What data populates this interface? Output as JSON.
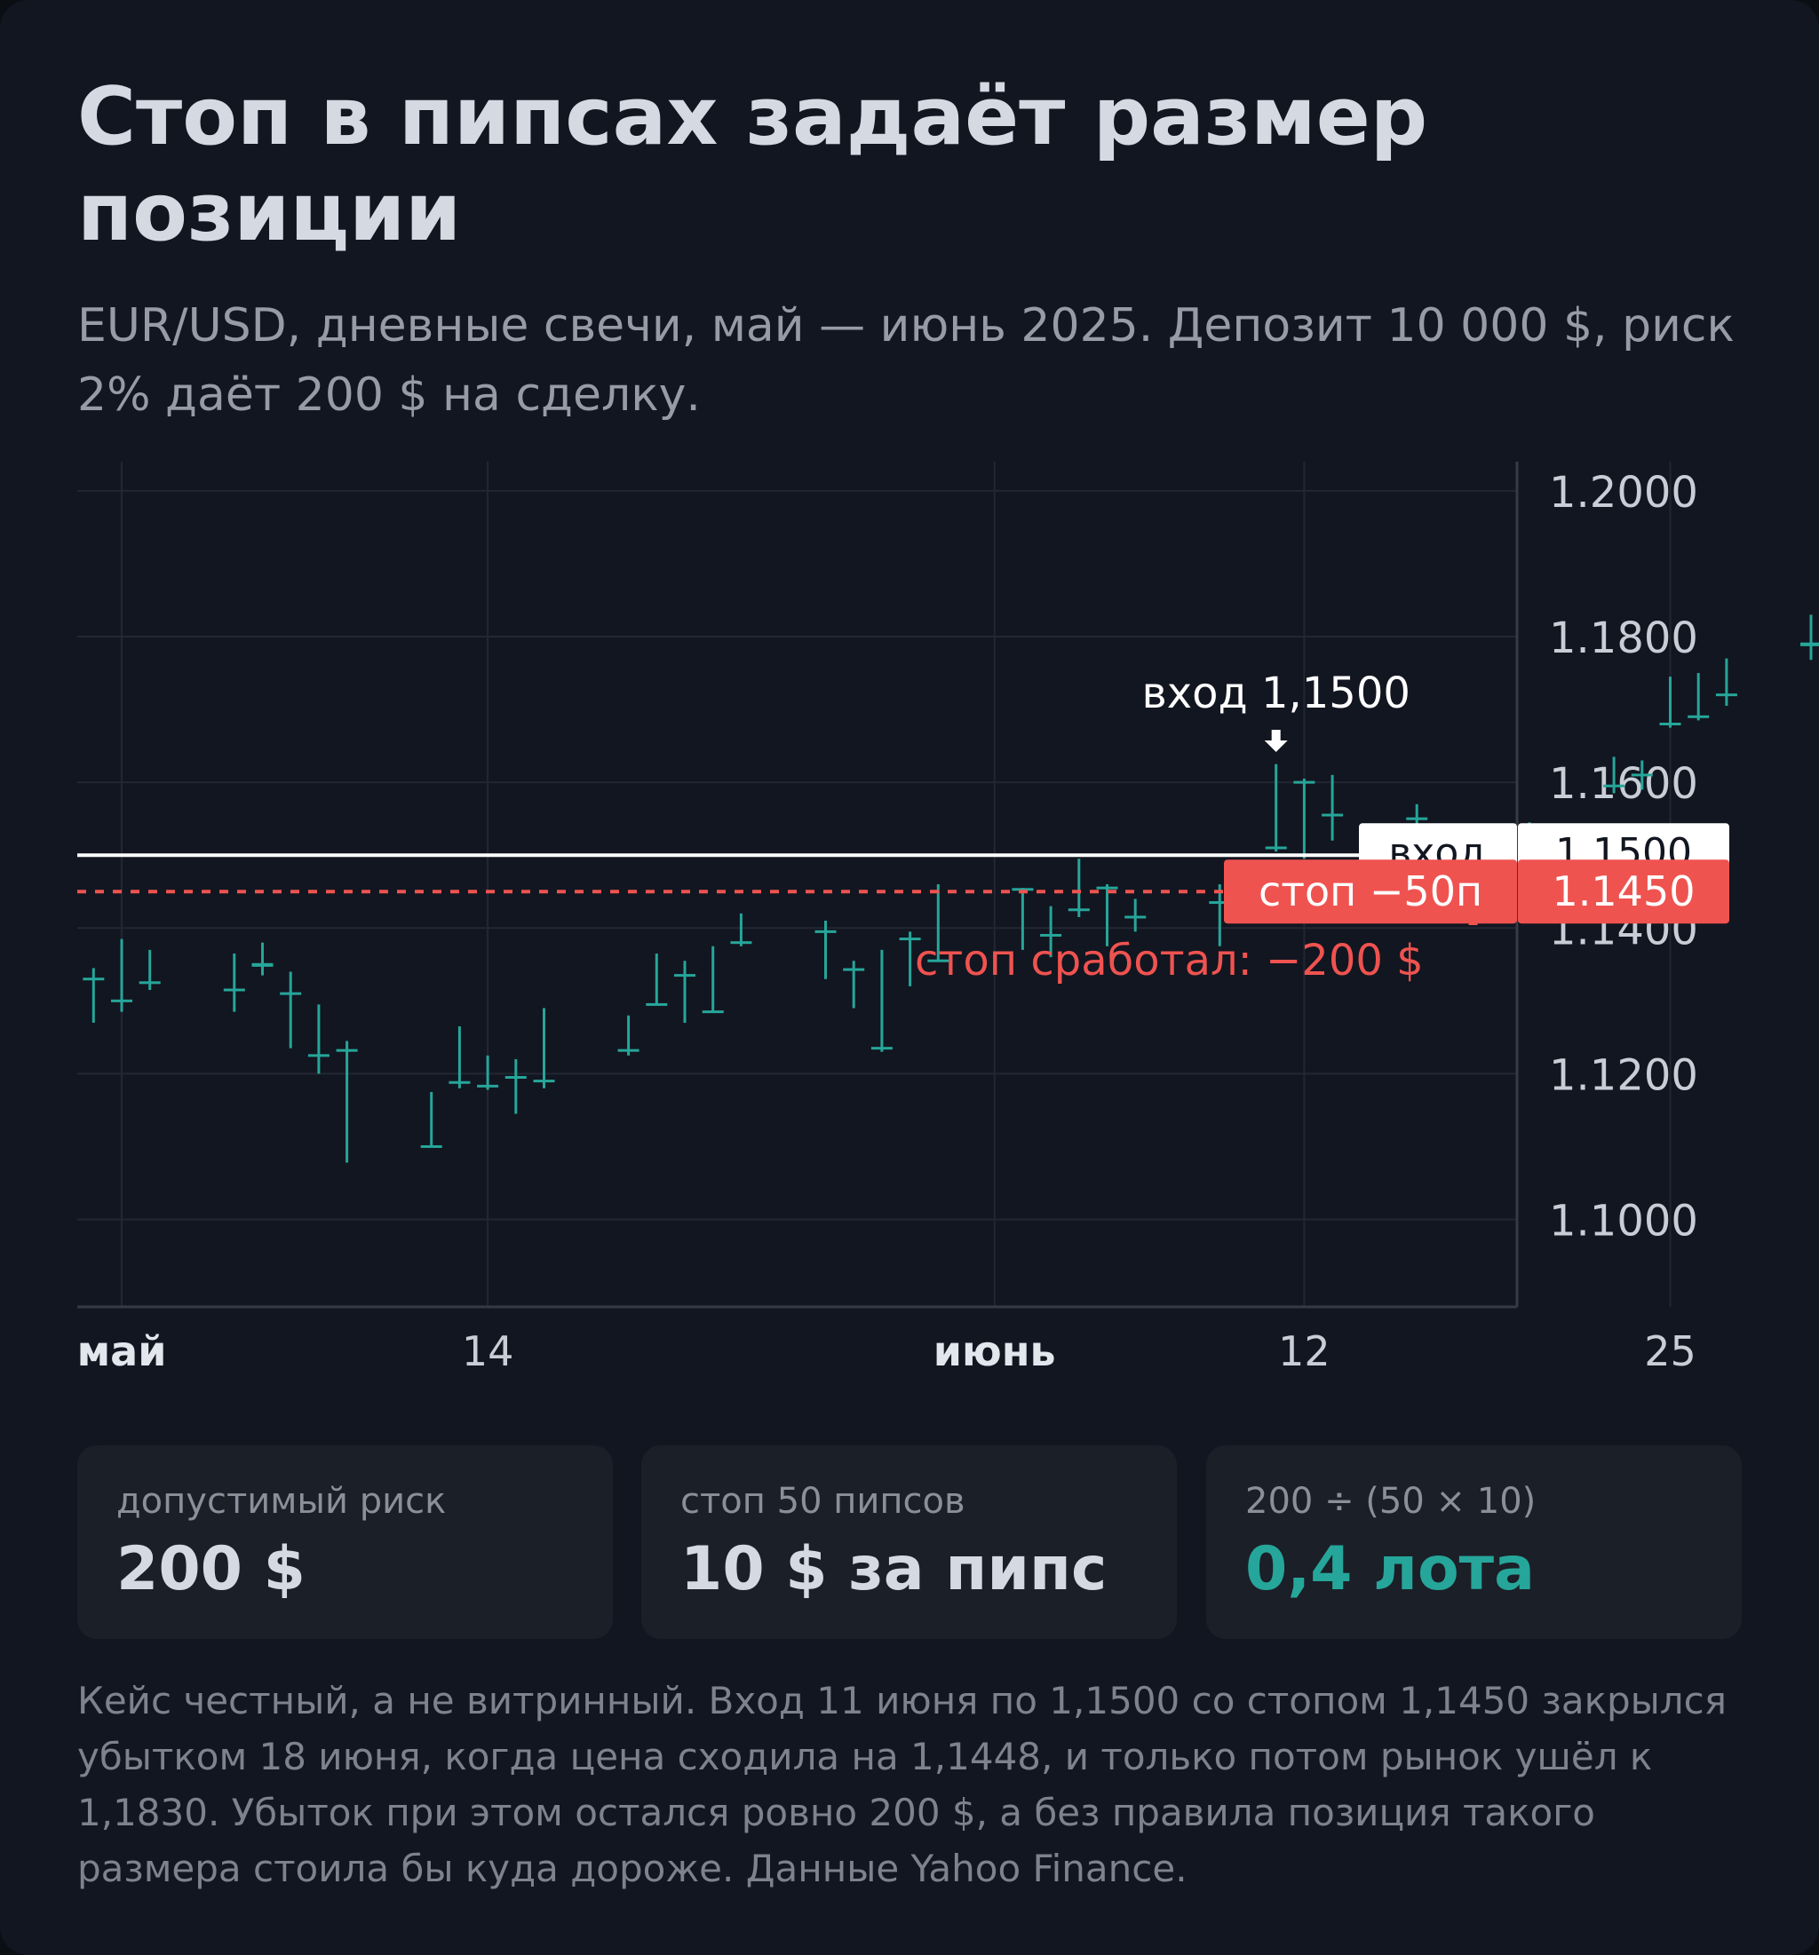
{
  "title": "Стоп в пипсах задаёт размер позиции",
  "subtitle": "EUR/USD, дневные свечи, май — июнь 2025. Депозит 10 000 $, риск 2% даёт 200 $ на сделку.",
  "chart_data": {
    "type": "candlestick",
    "series_name": "EUR/USD",
    "ylim": [
      1.088,
      1.2023
    ],
    "y_ticks": [
      "1.2000",
      "1.1800",
      "1.1600",
      "1.1400",
      "1.1200",
      "1.1000"
    ],
    "y_tick_values": [
      1.2,
      1.18,
      1.16,
      1.14,
      1.12,
      1.1
    ],
    "x_ticks": [
      {
        "label": "май",
        "bold": true,
        "at": "2025-05-01"
      },
      {
        "label": "14",
        "bold": false,
        "at": "2025-05-14"
      },
      {
        "label": "июнь",
        "bold": true,
        "at": "2025-06-01"
      },
      {
        "label": "12",
        "bold": false,
        "at": "2025-06-12"
      },
      {
        "label": "25",
        "bold": false,
        "at": "2025-06-25"
      }
    ],
    "candles": [
      {
        "date": "2025-04-30",
        "open": 1.133,
        "high": 1.1345,
        "low": 1.127,
        "close": 1.1328
      },
      {
        "date": "2025-05-01",
        "open": 1.13,
        "high": 1.1385,
        "low": 1.1285,
        "close": 1.13
      },
      {
        "date": "2025-05-02",
        "open": 1.1325,
        "high": 1.137,
        "low": 1.1315,
        "close": 1.1325
      },
      {
        "date": "2025-05-05",
        "open": 1.1315,
        "high": 1.1365,
        "low": 1.1285,
        "close": 1.1315
      },
      {
        "date": "2025-05-06",
        "open": 1.135,
        "high": 1.138,
        "low": 1.1335,
        "close": 1.1345
      },
      {
        "date": "2025-05-07",
        "open": 1.131,
        "high": 1.134,
        "low": 1.1235,
        "close": 1.131
      },
      {
        "date": "2025-05-08",
        "open": 1.1225,
        "high": 1.1295,
        "low": 1.12,
        "close": 1.1225
      },
      {
        "date": "2025-05-09",
        "open": 1.1232,
        "high": 1.1245,
        "low": 1.1078,
        "close": 1.1232
      },
      {
        "date": "2025-05-12",
        "open": 1.11,
        "high": 1.1175,
        "low": 1.11,
        "close": 1.11
      },
      {
        "date": "2025-05-13",
        "open": 1.1188,
        "high": 1.1265,
        "low": 1.118,
        "close": 1.1188
      },
      {
        "date": "2025-05-14",
        "open": 1.1183,
        "high": 1.1225,
        "low": 1.1178,
        "close": 1.1183
      },
      {
        "date": "2025-05-15",
        "open": 1.1195,
        "high": 1.122,
        "low": 1.1145,
        "close": 1.1195
      },
      {
        "date": "2025-05-16",
        "open": 1.119,
        "high": 1.129,
        "low": 1.118,
        "close": 1.119
      },
      {
        "date": "2025-05-19",
        "open": 1.1232,
        "high": 1.128,
        "low": 1.1225,
        "close": 1.1232
      },
      {
        "date": "2025-05-20",
        "open": 1.1295,
        "high": 1.1365,
        "low": 1.1295,
        "close": 1.1295
      },
      {
        "date": "2025-05-21",
        "open": 1.1335,
        "high": 1.1355,
        "low": 1.127,
        "close": 1.1335
      },
      {
        "date": "2025-05-22",
        "open": 1.1285,
        "high": 1.1375,
        "low": 1.1285,
        "close": 1.1285
      },
      {
        "date": "2025-05-23",
        "open": 1.138,
        "high": 1.142,
        "low": 1.1375,
        "close": 1.138
      },
      {
        "date": "2025-05-26",
        "open": 1.1395,
        "high": 1.141,
        "low": 1.133,
        "close": 1.1395
      },
      {
        "date": "2025-05-27",
        "open": 1.1343,
        "high": 1.1355,
        "low": 1.129,
        "close": 1.1343
      },
      {
        "date": "2025-05-28",
        "open": 1.1235,
        "high": 1.137,
        "low": 1.123,
        "close": 1.1235
      },
      {
        "date": "2025-05-29",
        "open": 1.1385,
        "high": 1.1395,
        "low": 1.132,
        "close": 1.1385
      },
      {
        "date": "2025-05-30",
        "open": 1.1355,
        "high": 1.146,
        "low": 1.1355,
        "close": 1.1355
      },
      {
        "date": "2025-06-02",
        "open": 1.1453,
        "high": 1.1455,
        "low": 1.137,
        "close": 1.1453
      },
      {
        "date": "2025-06-03",
        "open": 1.139,
        "high": 1.143,
        "low": 1.136,
        "close": 1.139
      },
      {
        "date": "2025-06-04",
        "open": 1.1425,
        "high": 1.1495,
        "low": 1.1415,
        "close": 1.1425
      },
      {
        "date": "2025-06-05",
        "open": 1.1455,
        "high": 1.146,
        "low": 1.1375,
        "close": 1.1455
      },
      {
        "date": "2025-06-06",
        "open": 1.1415,
        "high": 1.144,
        "low": 1.1395,
        "close": 1.1415
      },
      {
        "date": "2025-06-09",
        "open": 1.1435,
        "high": 1.146,
        "low": 1.1375,
        "close": 1.1435
      },
      {
        "date": "2025-06-10",
        "open": 1.144,
        "high": 1.149,
        "low": 1.142,
        "close": 1.144
      },
      {
        "date": "2025-06-11",
        "open": 1.151,
        "high": 1.1625,
        "low": 1.1505,
        "close": 1.151
      },
      {
        "date": "2025-06-12",
        "open": 1.16,
        "high": 1.1605,
        "low": 1.1495,
        "close": 1.16
      },
      {
        "date": "2025-06-13",
        "open": 1.1555,
        "high": 1.161,
        "low": 1.152,
        "close": 1.1555
      },
      {
        "date": "2025-06-16",
        "open": 1.155,
        "high": 1.157,
        "low": 1.152,
        "close": 1.155
      },
      {
        "date": "2025-06-17",
        "open": 1.1485,
        "high": 1.1525,
        "low": 1.148,
        "close": 1.1485
      },
      {
        "date": "2025-06-18",
        "open": 1.1475,
        "high": 1.1485,
        "low": 1.1448,
        "close": 1.1475
      },
      {
        "date": "2025-06-19",
        "open": 1.151,
        "high": 1.153,
        "low": 1.1495,
        "close": 1.151
      },
      {
        "date": "2025-06-20",
        "open": 1.1505,
        "high": 1.1545,
        "low": 1.1495,
        "close": 1.1505
      },
      {
        "date": "2025-06-23",
        "open": 1.1595,
        "high": 1.1635,
        "low": 1.1585,
        "close": 1.1595
      },
      {
        "date": "2025-06-24",
        "open": 1.161,
        "high": 1.163,
        "low": 1.159,
        "close": 1.161
      },
      {
        "date": "2025-06-25",
        "open": 1.168,
        "high": 1.1745,
        "low": 1.1675,
        "close": 1.168
      },
      {
        "date": "2025-06-26",
        "open": 1.169,
        "high": 1.175,
        "low": 1.1685,
        "close": 1.169
      },
      {
        "date": "2025-06-27",
        "open": 1.172,
        "high": 1.177,
        "low": 1.1705,
        "close": 1.172
      },
      {
        "date": "2025-06-30",
        "open": 1.179,
        "high": 1.183,
        "low": 1.1768,
        "close": 1.1785
      }
    ],
    "entry": {
      "price": 1.15,
      "label": "вход",
      "price_label": "1.1500",
      "color": "#ffffff"
    },
    "stop": {
      "price": 1.145,
      "label": "стоп −50п",
      "price_label": "1.1450",
      "color": "#ef5350"
    },
    "annotations": {
      "entry": {
        "text": "вход 1,1500",
        "date": "2025-06-11"
      },
      "stop_hit": {
        "text": "стоп сработал: −200 $",
        "date": "2025-06-18"
      }
    },
    "colors": {
      "candle": "#26a69a",
      "grid": "#232733",
      "axis": "#363a45",
      "text": "#c9cdd6",
      "background": "#121620"
    },
    "grid": true
  },
  "stats": [
    {
      "label": "допустимый риск",
      "value": "200 $",
      "accent": false
    },
    {
      "label": "стоп 50 пипсов",
      "value": "10 $ за пипс",
      "accent": false
    },
    {
      "label": "200 ÷ (50 × 10)",
      "value": "0,4 лота",
      "accent": true
    }
  ],
  "note": "Кейс честный, а не витринный. Вход 11 июня по 1,1500 со стопом 1,1450 закрылся убытком 18 июня, когда цена сходила на 1,1448, и только потом рынок ушёл к 1,1830. Убыток при этом остался ровно 200 $, а без правила позиция такого размера стоила бы куда дороже. Данные Yahoo Finance."
}
